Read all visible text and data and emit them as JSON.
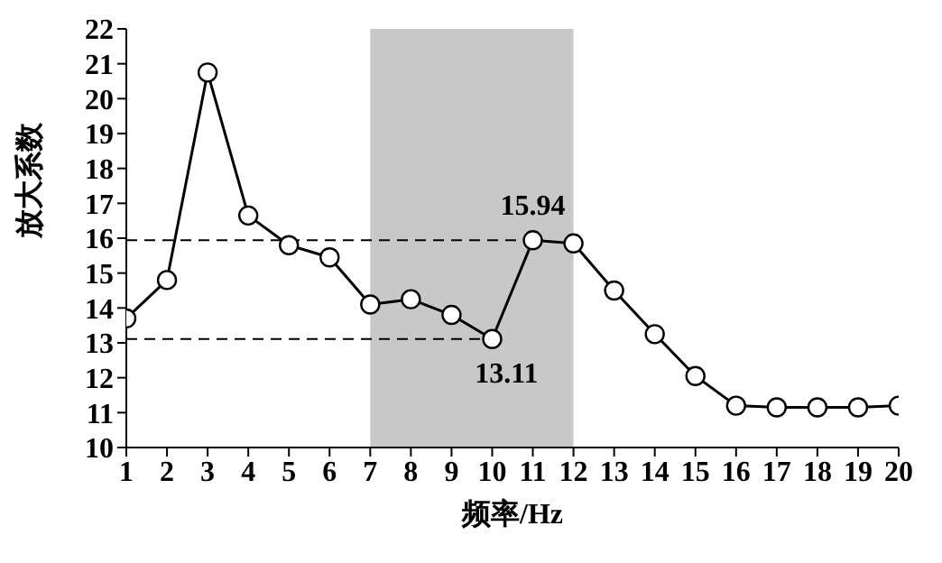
{
  "chart_data": {
    "type": "line",
    "xlabel": "频率/Hz",
    "ylabel": "放大系数",
    "x": [
      1,
      2,
      3,
      4,
      5,
      6,
      7,
      8,
      9,
      10,
      11,
      12,
      13,
      14,
      15,
      16,
      17,
      18,
      19,
      20
    ],
    "series": [
      {
        "color": "#000000",
        "values": [
          13.7,
          14.8,
          20.75,
          16.65,
          15.8,
          15.45,
          14.1,
          14.25,
          13.8,
          13.11,
          15.94,
          15.85,
          14.5,
          13.25,
          12.05,
          11.2,
          11.15,
          11.15,
          11.15,
          11.2
        ],
        "value_labels": [
          null,
          null,
          null,
          null,
          null,
          null,
          null,
          null,
          null,
          "13.11",
          "15.94",
          null,
          null,
          null,
          null,
          null,
          null,
          null,
          null,
          null
        ]
      }
    ],
    "xlim": [
      1,
      20
    ],
    "xticks": [
      1,
      2,
      3,
      4,
      5,
      6,
      7,
      8,
      9,
      10,
      11,
      12,
      13,
      14,
      15,
      16,
      17,
      18,
      19,
      20
    ],
    "ylim": [
      10,
      22
    ],
    "yticks": [
      10,
      11,
      12,
      13,
      14,
      15,
      16,
      17,
      18,
      19,
      20,
      21,
      22
    ],
    "ref_lines": [
      {
        "axis": "y",
        "value": 15.94,
        "line_style": "dashed",
        "color": "#000000"
      },
      {
        "axis": "y",
        "value": 13.11,
        "line_style": "dashed",
        "color": "#000000"
      }
    ],
    "bands": [
      {
        "axis": "x",
        "from": 7,
        "to": 12,
        "color": "#c8c8c8"
      }
    ],
    "marker": "circle",
    "line_style": "solid"
  }
}
